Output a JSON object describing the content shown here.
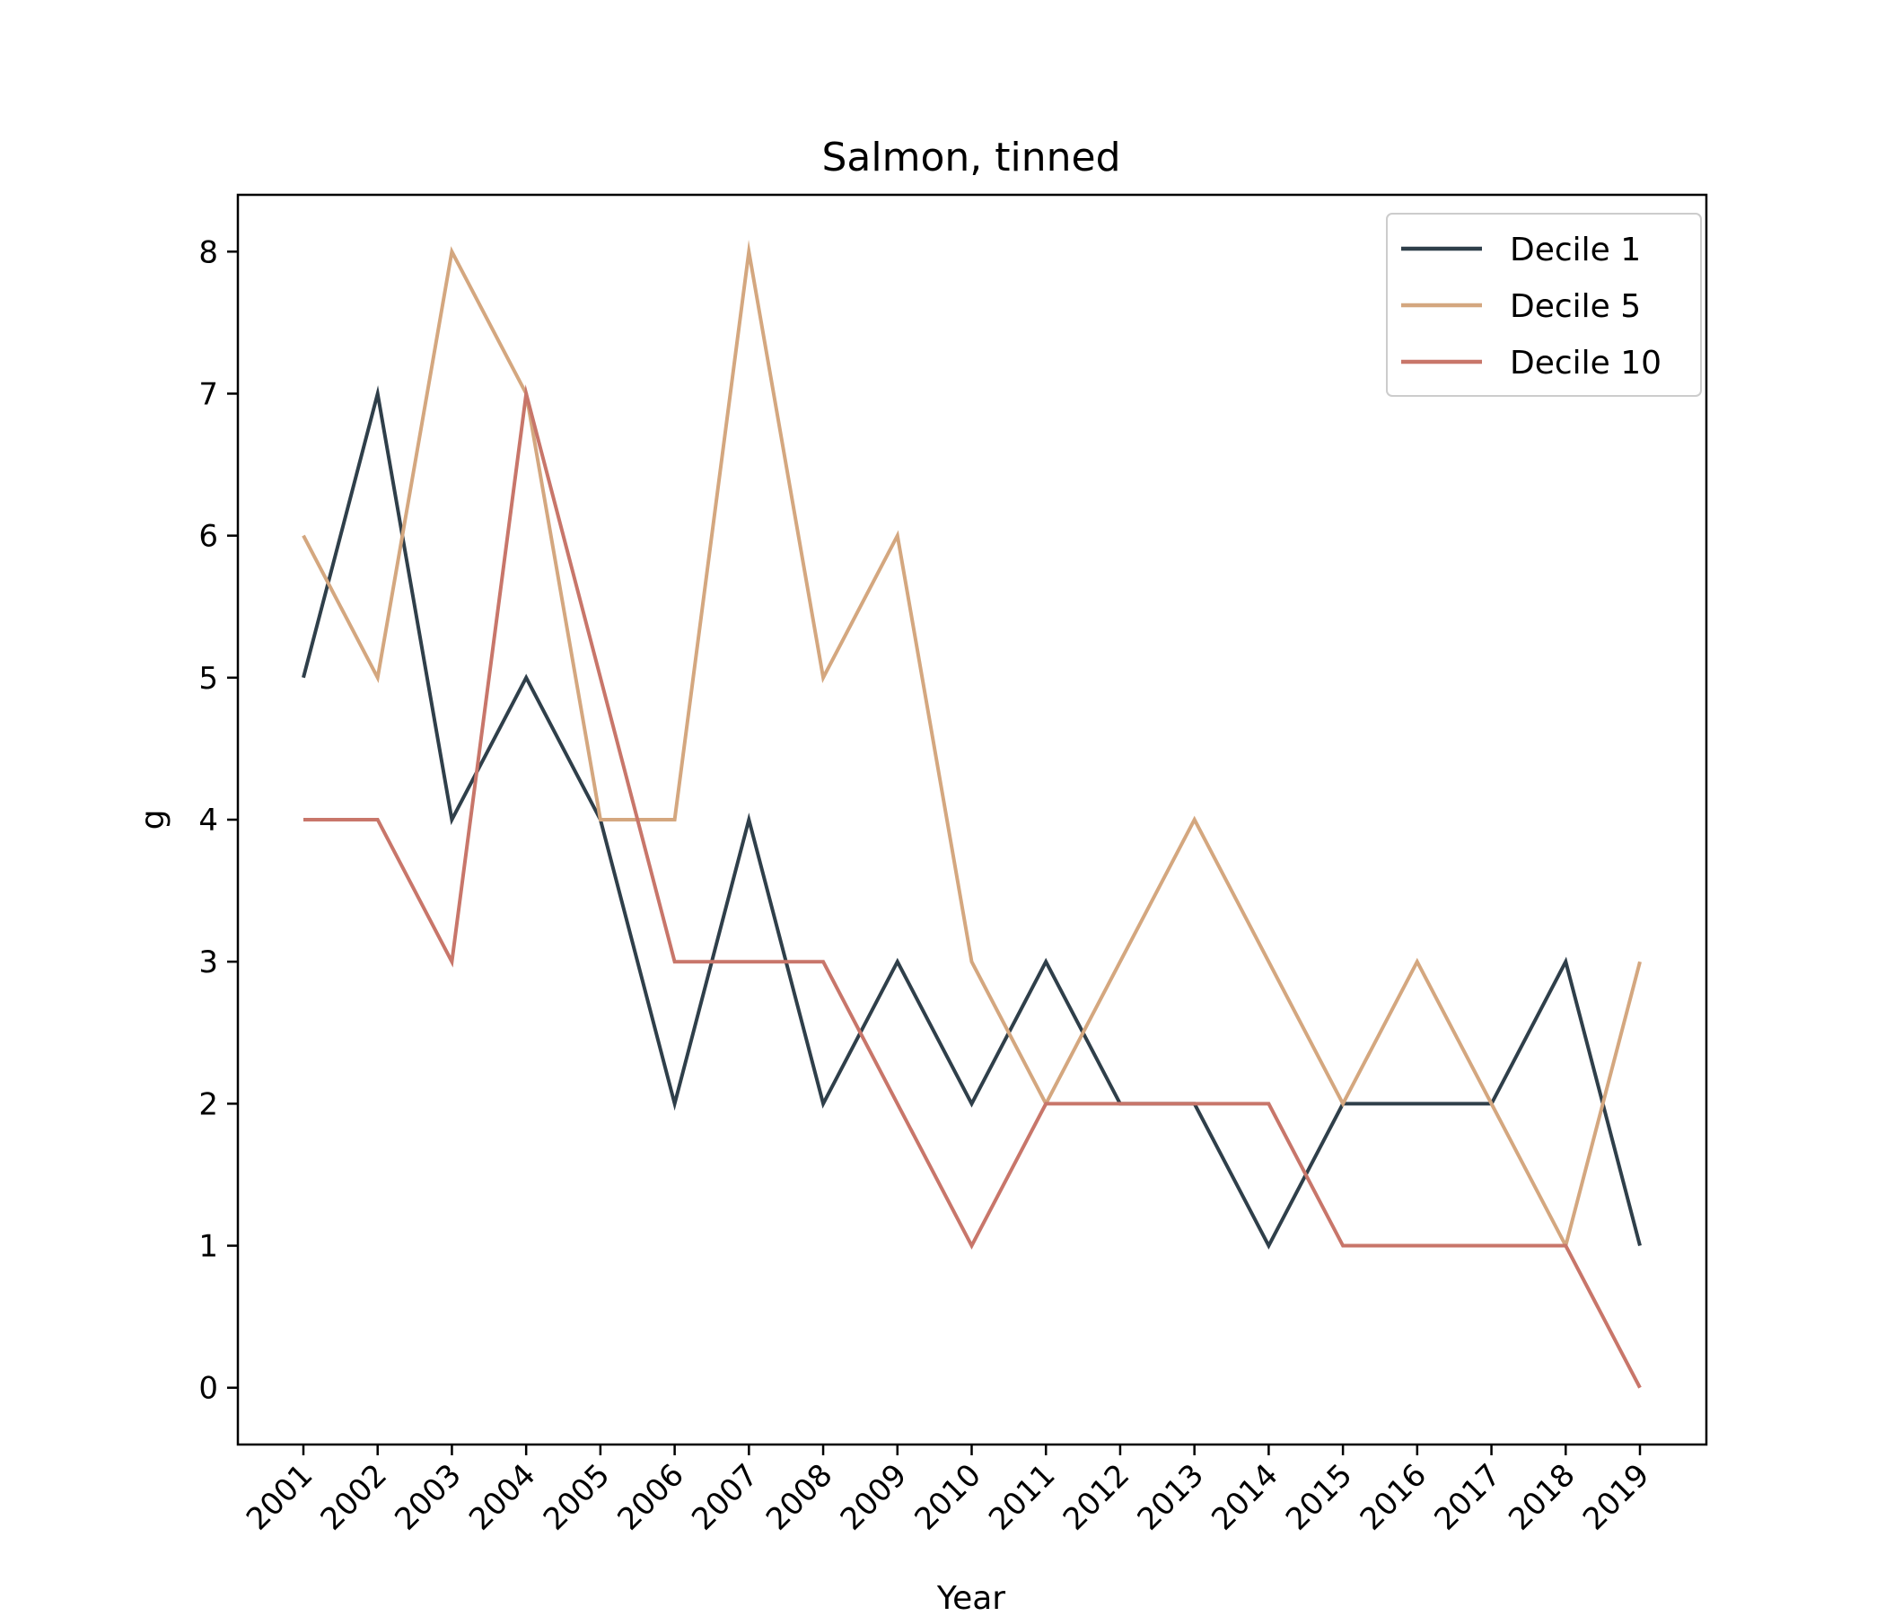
{
  "chart_data": {
    "type": "line",
    "title": "Salmon, tinned",
    "xlabel": "Year",
    "ylabel": "g",
    "categories": [
      "2001",
      "2002",
      "2003",
      "2004",
      "2005",
      "2006",
      "2007",
      "2008",
      "2009",
      "2010",
      "2011",
      "2012",
      "2013",
      "2014",
      "2015",
      "2016",
      "2017",
      "2018",
      "2019"
    ],
    "ylim": [
      -0.4,
      8.4
    ],
    "yticks": [
      0,
      1,
      2,
      3,
      4,
      5,
      6,
      7,
      8
    ],
    "grid": false,
    "legend_position": "top-right",
    "series": [
      {
        "name": "Decile 1",
        "color": "#2f3f4a",
        "values": [
          5,
          7,
          4,
          5,
          4,
          2,
          4,
          2,
          3,
          2,
          3,
          2,
          2,
          1,
          2,
          2,
          2,
          3,
          1
        ]
      },
      {
        "name": "Decile 5",
        "color": "#d4a77f",
        "values": [
          6,
          5,
          8,
          7,
          4,
          4,
          8,
          5,
          6,
          3,
          2,
          3,
          4,
          3,
          2,
          3,
          2,
          1,
          3
        ]
      },
      {
        "name": "Decile 10",
        "color": "#c8766a",
        "values": [
          4,
          4,
          3,
          7,
          5,
          3,
          3,
          3,
          2,
          1,
          2,
          2,
          2,
          2,
          1,
          1,
          1,
          1,
          0
        ]
      }
    ]
  }
}
